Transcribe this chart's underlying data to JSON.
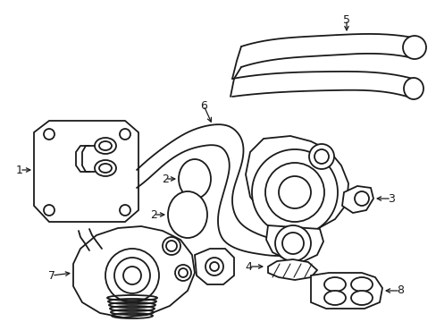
{
  "bg_color": "#ffffff",
  "lc": "#1a1a1a",
  "lw": 1.3,
  "fw": 4.89,
  "fh": 3.6,
  "dpi": 100
}
